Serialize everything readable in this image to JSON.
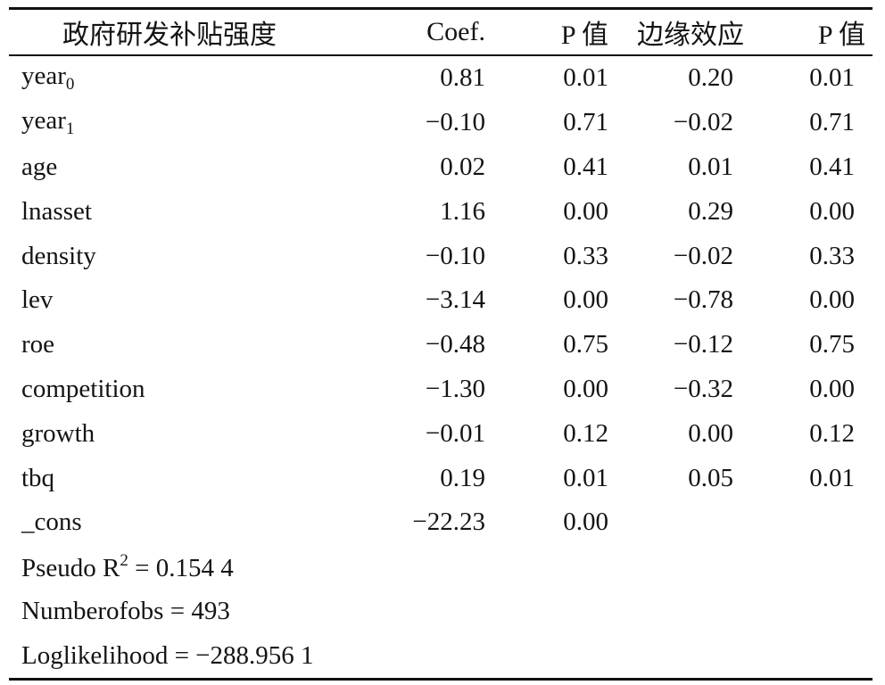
{
  "header": {
    "variable": "政府研发补贴强度",
    "coef": "Coef.",
    "p1": "P 值",
    "marginal": "边缘效应",
    "p2": "P 值"
  },
  "rows": [
    {
      "base": "year",
      "sub": "0",
      "coef": "0.81",
      "p1": "0.01",
      "me": "0.20",
      "p2": "0.01"
    },
    {
      "base": "year",
      "sub": "1",
      "coef": "−0.10",
      "p1": "0.71",
      "me": "−0.02",
      "p2": "0.71"
    },
    {
      "label": "age",
      "coef": "0.02",
      "p1": "0.41",
      "me": "0.01",
      "p2": "0.41"
    },
    {
      "label": "lnasset",
      "coef": "1.16",
      "p1": "0.00",
      "me": "0.29",
      "p2": "0.00"
    },
    {
      "label": "density",
      "coef": "−0.10",
      "p1": "0.33",
      "me": "−0.02",
      "p2": "0.33"
    },
    {
      "label": "lev",
      "coef": "−3.14",
      "p1": "0.00",
      "me": "−0.78",
      "p2": "0.00"
    },
    {
      "label": "roe",
      "coef": "−0.48",
      "p1": "0.75",
      "me": "−0.12",
      "p2": "0.75"
    },
    {
      "label": "competition",
      "coef": "−1.30",
      "p1": "0.00",
      "me": "−0.32",
      "p2": "0.00"
    },
    {
      "label": "growth",
      "coef": "−0.01",
      "p1": "0.12",
      "me": "0.00",
      "p2": "0.12"
    },
    {
      "label": "tbq",
      "coef": "0.19",
      "p1": "0.01",
      "me": "0.05",
      "p2": "0.01"
    },
    {
      "label": "_cons",
      "coef": "−22.23",
      "p1": "0.00",
      "me": "",
      "p2": ""
    }
  ],
  "footer": {
    "pseudo_r2_prefix": "Pseudo R",
    "pseudo_r2_sup": "2",
    "pseudo_r2_value": " = 0.154 4",
    "nobs": "Numberofobs = 493",
    "loglik": "Loglikelihood = −288.956 1"
  }
}
